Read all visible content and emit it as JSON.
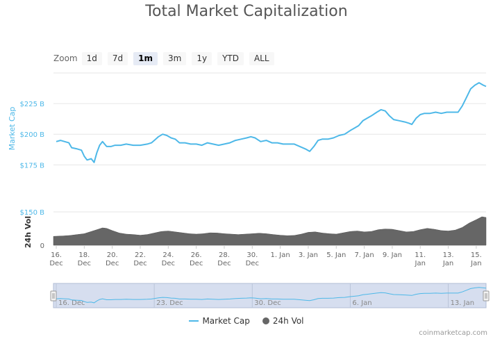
{
  "title": "Total Market Capitalization",
  "zoom": {
    "label": "Zoom",
    "buttons": [
      "1d",
      "7d",
      "1m",
      "3m",
      "1y",
      "YTD",
      "ALL"
    ],
    "selected": "1m"
  },
  "legend": {
    "market_cap": "Market Cap",
    "volume": "24h Vol"
  },
  "credit": "coinmarketcap.com",
  "colors": {
    "market_cap": "#4db8e8",
    "volume": "#666666",
    "navigator_fill": "#ccd6eb"
  },
  "chart_data": {
    "type": "area",
    "x_ticks": [
      {
        "day": 16,
        "label": [
          "16.",
          "Dec"
        ]
      },
      {
        "day": 18,
        "label": [
          "18.",
          "Dec"
        ]
      },
      {
        "day": 20,
        "label": [
          "20.",
          "Dec"
        ]
      },
      {
        "day": 22,
        "label": [
          "22.",
          "Dec"
        ]
      },
      {
        "day": 24,
        "label": [
          "24.",
          "Dec"
        ]
      },
      {
        "day": 26,
        "label": [
          "26.",
          "Dec"
        ]
      },
      {
        "day": 28,
        "label": [
          "28.",
          "Dec"
        ]
      },
      {
        "day": 30,
        "label": [
          "30.",
          "Dec"
        ]
      },
      {
        "day": 32,
        "label": [
          "1. Jan"
        ]
      },
      {
        "day": 34,
        "label": [
          "3. Jan"
        ]
      },
      {
        "day": 36,
        "label": [
          "5. Jan"
        ]
      },
      {
        "day": 38,
        "label": [
          "7. Jan"
        ]
      },
      {
        "day": 40,
        "label": [
          "9. Jan"
        ]
      },
      {
        "day": 42,
        "label": [
          "11.",
          "Jan"
        ]
      },
      {
        "day": 44,
        "label": [
          "13.",
          "Jan"
        ]
      },
      {
        "day": 46,
        "label": [
          "15.",
          "Jan"
        ]
      }
    ],
    "x_range": [
      15.8,
      46.7
    ],
    "market_cap": {
      "name": "Market Cap",
      "ylabel": "Market Cap",
      "ylim": [
        165,
        250
      ],
      "ticks": [
        {
          "v": 175,
          "label": "$175 B"
        },
        {
          "v": 200,
          "label": "$200 B"
        },
        {
          "v": 225,
          "label": "$225 B"
        }
      ],
      "points": [
        [
          16.0,
          194
        ],
        [
          16.3,
          195
        ],
        [
          16.6,
          194
        ],
        [
          16.9,
          193
        ],
        [
          17.1,
          189
        ],
        [
          17.5,
          188
        ],
        [
          17.8,
          187
        ],
        [
          18.0,
          182
        ],
        [
          18.2,
          179
        ],
        [
          18.5,
          180
        ],
        [
          18.7,
          177
        ],
        [
          18.9,
          185
        ],
        [
          19.1,
          191
        ],
        [
          19.3,
          194
        ],
        [
          19.6,
          190
        ],
        [
          19.9,
          190
        ],
        [
          20.2,
          191
        ],
        [
          20.6,
          191
        ],
        [
          21.0,
          192
        ],
        [
          21.5,
          191
        ],
        [
          22.0,
          191
        ],
        [
          22.5,
          192
        ],
        [
          22.8,
          193
        ],
        [
          23.0,
          195
        ],
        [
          23.3,
          198
        ],
        [
          23.6,
          200
        ],
        [
          23.9,
          199
        ],
        [
          24.2,
          197
        ],
        [
          24.5,
          196
        ],
        [
          24.8,
          193
        ],
        [
          25.2,
          193
        ],
        [
          25.6,
          192
        ],
        [
          26.0,
          192
        ],
        [
          26.4,
          191
        ],
        [
          26.8,
          193
        ],
        [
          27.2,
          192
        ],
        [
          27.6,
          191
        ],
        [
          28.0,
          192
        ],
        [
          28.4,
          193
        ],
        [
          28.8,
          195
        ],
        [
          29.2,
          196
        ],
        [
          29.6,
          197
        ],
        [
          29.9,
          198
        ],
        [
          30.2,
          197
        ],
        [
          30.6,
          194
        ],
        [
          31.0,
          195
        ],
        [
          31.4,
          193
        ],
        [
          31.8,
          193
        ],
        [
          32.2,
          192
        ],
        [
          32.6,
          192
        ],
        [
          33.0,
          192
        ],
        [
          33.4,
          190
        ],
        [
          33.8,
          188
        ],
        [
          34.1,
          186
        ],
        [
          34.4,
          190
        ],
        [
          34.7,
          195
        ],
        [
          35.0,
          196
        ],
        [
          35.4,
          196
        ],
        [
          35.8,
          197
        ],
        [
          36.2,
          199
        ],
        [
          36.6,
          200
        ],
        [
          37.0,
          203
        ],
        [
          37.3,
          205
        ],
        [
          37.6,
          207
        ],
        [
          37.9,
          211
        ],
        [
          38.2,
          213
        ],
        [
          38.5,
          215
        ],
        [
          38.9,
          218
        ],
        [
          39.2,
          220
        ],
        [
          39.5,
          219
        ],
        [
          39.8,
          215
        ],
        [
          40.1,
          212
        ],
        [
          40.5,
          211
        ],
        [
          40.9,
          210
        ],
        [
          41.2,
          209
        ],
        [
          41.4,
          208
        ],
        [
          41.7,
          213
        ],
        [
          42.0,
          216
        ],
        [
          42.3,
          217
        ],
        [
          42.7,
          217
        ],
        [
          43.1,
          218
        ],
        [
          43.5,
          217
        ],
        [
          43.9,
          218
        ],
        [
          44.3,
          218
        ],
        [
          44.7,
          218
        ],
        [
          45.0,
          223
        ],
        [
          45.3,
          230
        ],
        [
          45.6,
          237
        ],
        [
          45.9,
          240
        ],
        [
          46.2,
          242
        ],
        [
          46.5,
          240
        ],
        [
          46.7,
          239
        ]
      ]
    },
    "volume": {
      "name": "24h Vol",
      "ylabel": "24h Vol",
      "ylim": [
        0,
        150
      ],
      "ticks": [
        {
          "v": 0,
          "label": "0"
        },
        {
          "v": 150,
          "label": "$150 B"
        }
      ],
      "points": [
        [
          15.8,
          40
        ],
        [
          16.5,
          42
        ],
        [
          17.0,
          44
        ],
        [
          17.5,
          48
        ],
        [
          18.0,
          52
        ],
        [
          18.5,
          62
        ],
        [
          19.0,
          72
        ],
        [
          19.3,
          78
        ],
        [
          19.6,
          76
        ],
        [
          20.0,
          66
        ],
        [
          20.5,
          55
        ],
        [
          21.0,
          50
        ],
        [
          21.5,
          48
        ],
        [
          22.0,
          45
        ],
        [
          22.5,
          48
        ],
        [
          23.0,
          55
        ],
        [
          23.5,
          62
        ],
        [
          24.0,
          64
        ],
        [
          24.5,
          60
        ],
        [
          25.0,
          56
        ],
        [
          25.5,
          52
        ],
        [
          26.0,
          50
        ],
        [
          26.5,
          52
        ],
        [
          27.0,
          56
        ],
        [
          27.5,
          55
        ],
        [
          28.0,
          52
        ],
        [
          28.5,
          50
        ],
        [
          29.0,
          48
        ],
        [
          29.5,
          50
        ],
        [
          30.0,
          52
        ],
        [
          30.5,
          54
        ],
        [
          31.0,
          52
        ],
        [
          31.5,
          48
        ],
        [
          32.0,
          45
        ],
        [
          32.5,
          43
        ],
        [
          33.0,
          44
        ],
        [
          33.5,
          50
        ],
        [
          34.0,
          58
        ],
        [
          34.5,
          60
        ],
        [
          35.0,
          55
        ],
        [
          35.5,
          52
        ],
        [
          36.0,
          50
        ],
        [
          36.5,
          56
        ],
        [
          37.0,
          62
        ],
        [
          37.5,
          64
        ],
        [
          38.0,
          60
        ],
        [
          38.5,
          62
        ],
        [
          39.0,
          70
        ],
        [
          39.5,
          73
        ],
        [
          40.0,
          72
        ],
        [
          40.5,
          66
        ],
        [
          41.0,
          60
        ],
        [
          41.5,
          62
        ],
        [
          42.0,
          70
        ],
        [
          42.5,
          76
        ],
        [
          43.0,
          72
        ],
        [
          43.5,
          66
        ],
        [
          44.0,
          64
        ],
        [
          44.5,
          68
        ],
        [
          45.0,
          80
        ],
        [
          45.5,
          100
        ],
        [
          46.0,
          115
        ],
        [
          46.4,
          128
        ],
        [
          46.7,
          125
        ]
      ]
    },
    "navigator": {
      "labels": [
        {
          "day": 16,
          "text": "16. Dec"
        },
        {
          "day": 23,
          "text": "23. Dec"
        },
        {
          "day": 30,
          "text": "30. Dec"
        },
        {
          "day": 37,
          "text": "6. Jan"
        },
        {
          "day": 44,
          "text": "13. Jan"
        }
      ]
    }
  }
}
